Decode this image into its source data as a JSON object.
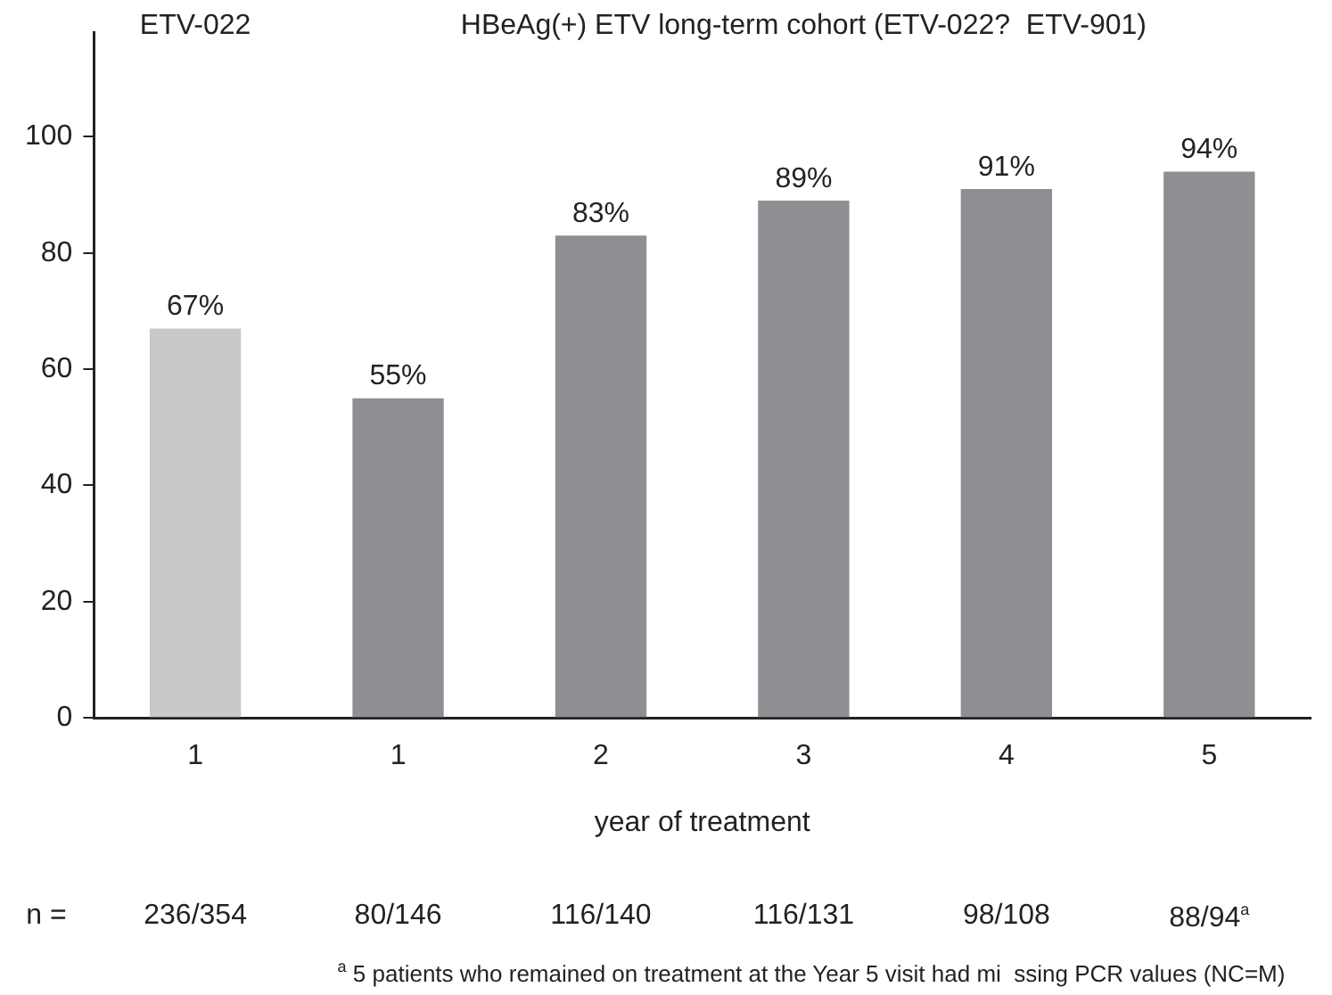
{
  "chart_data": {
    "type": "bar",
    "xlabel": "year of treatment",
    "categories": [
      "1",
      "1",
      "2",
      "3",
      "4",
      "5"
    ],
    "values": [
      67,
      55,
      83,
      89,
      91,
      94
    ],
    "colors": [
      "#c8c9cb",
      "#8e8f92",
      "#8e8f92",
      "#8e8f92",
      "#8e8f92",
      "#8e8f92"
    ],
    "value_labels": [
      "67%",
      "55%",
      "83%",
      "89%",
      "91%",
      "94%"
    ],
    "ylim": [
      0,
      118
    ],
    "yticks": [
      0,
      20,
      40,
      60,
      80,
      100
    ],
    "grid": false,
    "legend": false,
    "annotations": [
      "ETV-022",
      "HBeAg(+) ETV long-term cohort (ETV-022?  ETV-901)",
      "n =",
      "236/354",
      "80/146",
      "116/140",
      "116/131",
      "98/108",
      "88/94$^{a}$",
      "$^{a}$ 5 patients who remained on treatment at the Year 5 visit had mi  ssing PCR values (NC=M)"
    ]
  }
}
